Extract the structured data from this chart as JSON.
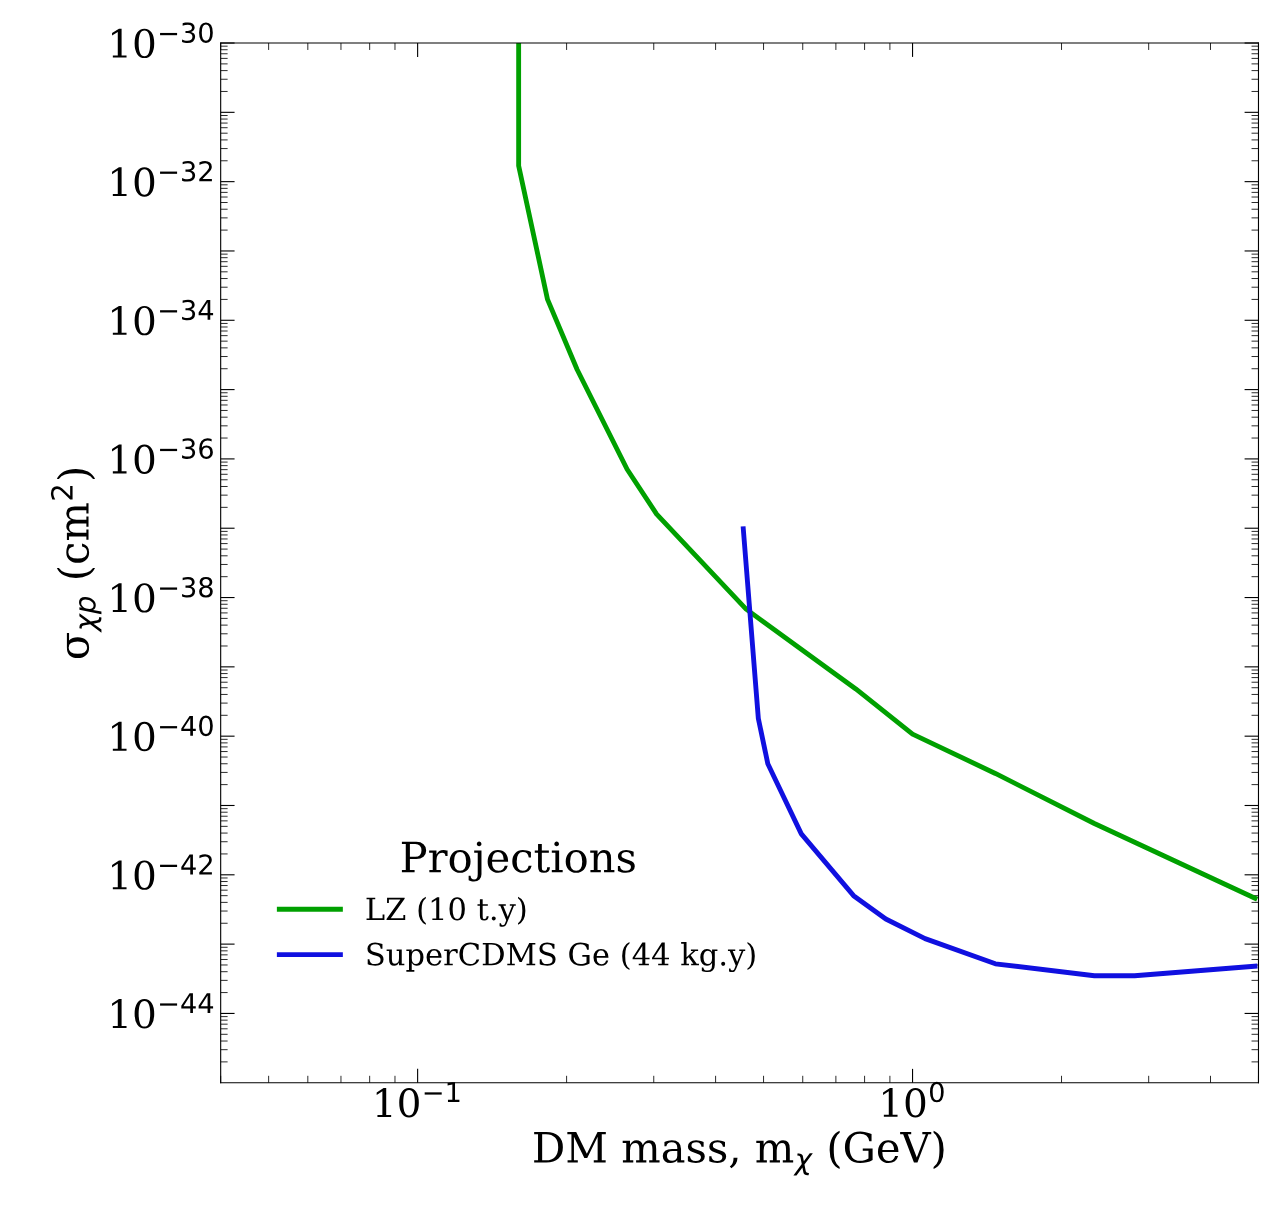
{
  "chart_data": {
    "type": "line",
    "xlabel": "DM mass, m$_{χ}$ (GeV)",
    "ylabel": "σ$_{χp}$ (cm$^{2}$)",
    "legend_title": "Projections",
    "legend": "bottom left",
    "log": "xy",
    "grid": false,
    "xlim": [
      0.04,
      5
    ],
    "ylim": [
      1e-45,
      1e-30
    ],
    "xticks": [
      {
        "value": 0.1,
        "label": "10$^{−1}$"
      },
      {
        "value": 1,
        "label": "10$^{0}$"
      }
    ],
    "yticks": [
      {
        "value": 1e-30,
        "label": "10$^{−30}$"
      },
      {
        "value": 1e-31,
        "label": null
      },
      {
        "value": 1e-32,
        "label": "10$^{−32}$"
      },
      {
        "value": 1e-33,
        "label": null
      },
      {
        "value": 1e-34,
        "label": "10$^{−34}$"
      },
      {
        "value": 1e-35,
        "label": null
      },
      {
        "value": 1e-36,
        "label": "10$^{−36}$"
      },
      {
        "value": 1e-37,
        "label": null
      },
      {
        "value": 1e-38,
        "label": "10$^{−38}$"
      },
      {
        "value": 1e-39,
        "label": null
      },
      {
        "value": 1e-40,
        "label": "10$^{−40}$"
      },
      {
        "value": 1e-41,
        "label": null
      },
      {
        "value": 1e-42,
        "label": "10$^{−42}$"
      },
      {
        "value": 1e-43,
        "label": null
      },
      {
        "value": 1e-44,
        "label": "10$^{−44}$"
      }
    ],
    "series": [
      {
        "name": "LZ (10 t.y)",
        "color": "#00a000",
        "x": [
          0.16,
          0.16,
          0.183,
          0.21,
          0.265,
          0.304,
          0.461,
          0.768,
          1.0,
          1.47,
          2.33,
          4.92
        ],
        "values": [
          1e-30,
          1.7e-32,
          2e-34,
          1.95e-35,
          7.1e-37,
          1.6e-37,
          6.8e-39,
          4.8e-40,
          1.07e-40,
          2.9e-41,
          5.5e-42,
          4.6e-43
        ]
      },
      {
        "name": "SuperCDMS Ge (44 kg.y)",
        "color": "#1010e0",
        "x": [
          0.455,
          0.488,
          0.51,
          0.596,
          0.76,
          0.883,
          1.06,
          1.47,
          2.33,
          2.81,
          4.92
        ],
        "values": [
          9.8e-38,
          1.8e-40,
          4e-41,
          3.9e-42,
          5e-43,
          2.3e-43,
          1.2e-43,
          5.2e-44,
          3.5e-44,
          3.5e-44,
          4.8e-44
        ]
      }
    ]
  }
}
